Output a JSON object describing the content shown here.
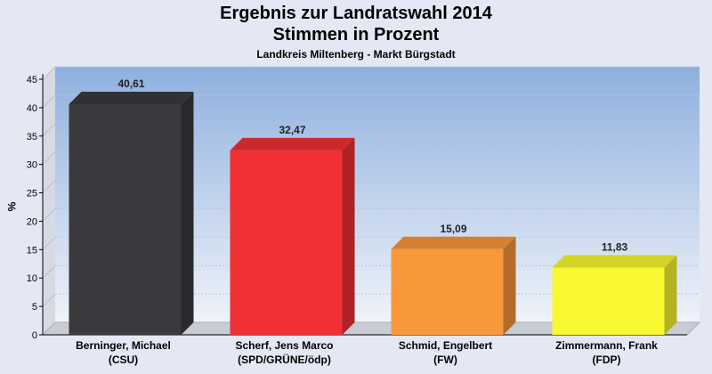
{
  "chart_data": {
    "type": "bar",
    "title": "Ergebnis zur Landratswahl 2014",
    "title_line2": "Stimmen in Prozent",
    "subtitle": "Landkreis Miltenberg - Markt Bürgstadt",
    "xlabel": "",
    "ylabel": "%",
    "ylim": [
      0,
      45
    ],
    "yticks": [
      0,
      5,
      10,
      15,
      20,
      25,
      30,
      35,
      40,
      45
    ],
    "grid": true,
    "categories": [
      [
        "Berninger, Michael",
        "(CSU)"
      ],
      [
        "Scherf, Jens Marco",
        "(SPD/GRÜNE/ödp)"
      ],
      [
        "Schmid, Engelbert",
        "(FW)"
      ],
      [
        "Zimmermann, Frank",
        "(FDP)"
      ]
    ],
    "values": [
      40.61,
      32.47,
      15.09,
      11.83
    ],
    "value_labels": [
      "40,61",
      "32,47",
      "15,09",
      "11,83"
    ],
    "colors": [
      "#3a3a3e",
      "#f03035",
      "#f8983a",
      "#f8f830"
    ]
  }
}
